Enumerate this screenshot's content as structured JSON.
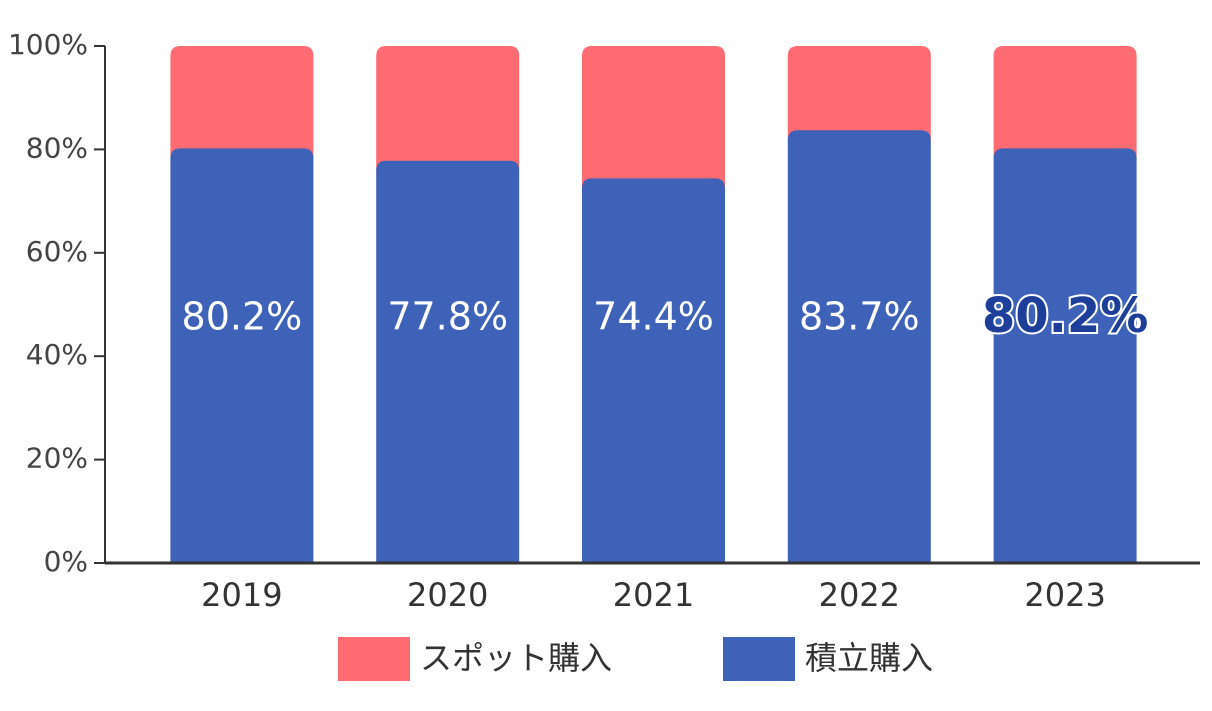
{
  "chart_data": {
    "type": "stacked-bar",
    "categories": [
      "2019",
      "2020",
      "2021",
      "2022",
      "2023"
    ],
    "series": [
      {
        "name": "スポット購入",
        "color": "#ff6b72",
        "values": [
          19.8,
          22.2,
          25.6,
          16.3,
          19.8
        ]
      },
      {
        "name": "積立購入",
        "color": "#3e62b7",
        "values": [
          80.2,
          77.8,
          74.4,
          83.7,
          80.2
        ],
        "value_labels": [
          "80.2%",
          "77.8%",
          "74.4%",
          "83.7%",
          "80.2%"
        ]
      }
    ],
    "ylim": [
      0,
      100
    ],
    "yticks": [
      {
        "value": 0,
        "label": "0%"
      },
      {
        "value": 20,
        "label": "20%"
      },
      {
        "value": 40,
        "label": "40%"
      },
      {
        "value": 60,
        "label": "60%"
      },
      {
        "value": 80,
        "label": "80%"
      },
      {
        "value": 100,
        "label": "100%"
      }
    ]
  }
}
